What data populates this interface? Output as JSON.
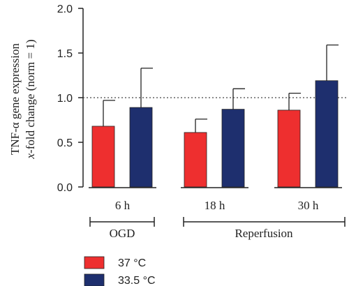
{
  "chart_data": {
    "type": "bar",
    "ylabel_line1": "TNF-α gene expression",
    "ylabel_line2_prefix": "x",
    "ylabel_line2_rest": "-fold change (norm = 1)",
    "ylim": [
      0,
      2.0
    ],
    "yticks": [
      "0.0",
      "0.5",
      "1.0",
      "1.5",
      "2.0"
    ],
    "ytick_values": [
      0,
      0.5,
      1.0,
      1.5,
      2.0
    ],
    "reference_line": 1.0,
    "categories": [
      "6 h",
      "18 h",
      "30 h"
    ],
    "phases": [
      {
        "label": "OGD",
        "categories": [
          "6 h"
        ]
      },
      {
        "label": "Reperfusion",
        "categories": [
          "18 h",
          "30 h"
        ]
      }
    ],
    "series": [
      {
        "name": "37 °C",
        "color": "#ee2f2f",
        "values": [
          0.68,
          0.61,
          0.86
        ],
        "errors": [
          0.29,
          0.15,
          0.19
        ]
      },
      {
        "name": "33.5 °C",
        "color": "#1e2f6e",
        "values": [
          0.89,
          0.87,
          1.19
        ],
        "errors": [
          0.44,
          0.23,
          0.4
        ]
      }
    ],
    "legend_position": "bottom-left"
  }
}
